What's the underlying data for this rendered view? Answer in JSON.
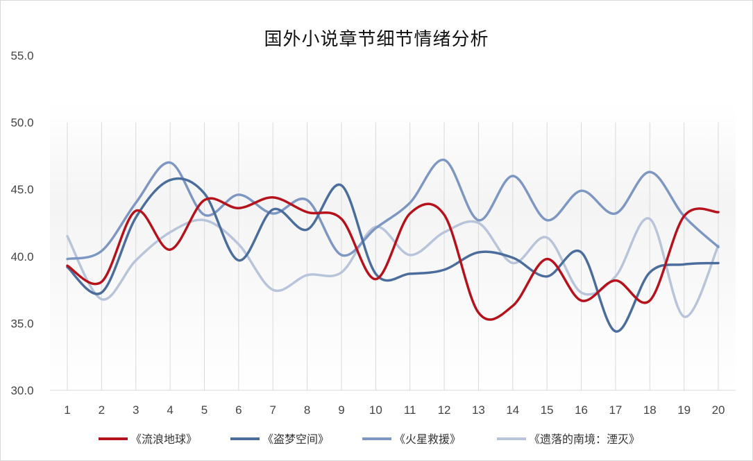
{
  "chart_data": {
    "type": "line",
    "title": "国外小说章节细节情绪分析",
    "xlabel": "",
    "ylabel": "",
    "ylim": [
      30,
      55
    ],
    "yticks": [
      "30.0",
      "35.0",
      "40.0",
      "45.0",
      "50.0",
      "55.0"
    ],
    "ytick_values": [
      30,
      35,
      40,
      45,
      50,
      55
    ],
    "x": [
      "1",
      "2",
      "3",
      "4",
      "5",
      "6",
      "7",
      "8",
      "9",
      "10",
      "11",
      "12",
      "13",
      "14",
      "15",
      "16",
      "17",
      "18",
      "19",
      "20"
    ],
    "grid": "vertical",
    "legend_position": "bottom",
    "series": [
      {
        "name": "《流浪地球》",
        "color": "#b5121b",
        "values": [
          39.3,
          38.1,
          43.4,
          40.5,
          44.2,
          43.6,
          44.4,
          43.3,
          42.8,
          38.3,
          43.2,
          43.1,
          35.8,
          36.3,
          39.8,
          36.7,
          38.2,
          36.7,
          43.0,
          43.3
        ]
      },
      {
        "name": "《盗梦空间》",
        "color": "#4b6d9c",
        "values": [
          39.2,
          37.3,
          42.9,
          45.7,
          44.7,
          39.7,
          43.5,
          42.0,
          45.3,
          38.7,
          38.7,
          39.0,
          40.3,
          39.9,
          38.5,
          40.3,
          34.4,
          38.8,
          39.4,
          39.5
        ]
      },
      {
        "name": "《火星救援》",
        "color": "#7d97c2",
        "values": [
          39.8,
          40.4,
          44.0,
          47.0,
          43.1,
          44.6,
          43.2,
          44.2,
          40.1,
          42.1,
          44.0,
          47.2,
          42.7,
          46.0,
          42.7,
          44.9,
          43.2,
          46.3,
          43.0,
          40.7
        ]
      },
      {
        "name": "《遗落的南境：湮灭》",
        "color": "#b7c4da",
        "values": [
          41.5,
          36.8,
          39.7,
          41.8,
          42.7,
          40.9,
          37.5,
          38.6,
          38.8,
          42.2,
          40.1,
          41.8,
          42.5,
          39.5,
          41.4,
          37.3,
          38.5,
          42.8,
          35.5,
          40.8
        ]
      }
    ]
  }
}
